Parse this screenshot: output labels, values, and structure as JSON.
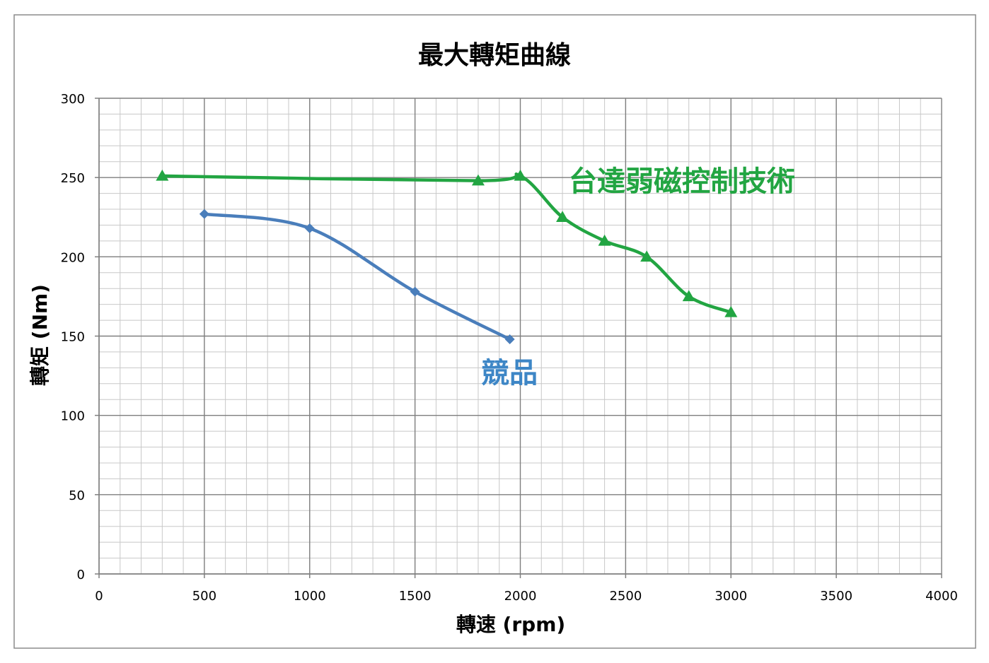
{
  "chart_data": {
    "type": "line",
    "title": "最大轉矩曲線",
    "xlabel": "轉速 (rpm)",
    "ylabel": "轉矩 (Nm)",
    "xlim": [
      0,
      4000
    ],
    "ylim": [
      0,
      300
    ],
    "xticks": [
      0,
      500,
      1000,
      1500,
      2000,
      2500,
      3000,
      3500,
      4000
    ],
    "yticks": [
      0,
      50,
      100,
      150,
      200,
      250,
      300
    ],
    "grid": true,
    "series": [
      {
        "name": "競品",
        "color": "#4a7ebb",
        "marker": "diamond",
        "x": [
          500,
          1000,
          1500,
          1950
        ],
        "y": [
          227,
          218,
          178,
          148
        ]
      },
      {
        "name": "台達弱磁控制技術",
        "color": "#22a542",
        "marker": "triangle",
        "x": [
          300,
          1800,
          2000,
          2200,
          2400,
          2600,
          2800,
          3000
        ],
        "y": [
          251,
          248,
          251,
          225,
          210,
          200,
          175,
          165
        ]
      }
    ],
    "annotations": [
      {
        "text": "台達弱磁控制技術",
        "color": "#22a542",
        "series": 1
      },
      {
        "text": "競品",
        "color": "#3d86c6",
        "series": 0
      }
    ]
  }
}
